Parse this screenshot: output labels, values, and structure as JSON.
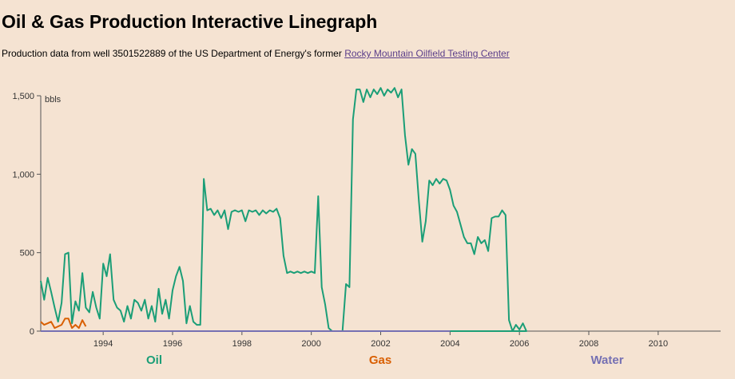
{
  "header": {
    "title": "Oil & Gas Production Interactive Linegraph",
    "subtitle_prefix": "Production data from well 3501522889 of the US Department of Energy's former ",
    "link_text": "Rocky Mountain Oilfield Testing Center"
  },
  "colors": {
    "oil": "#1b9e77",
    "gas": "#d95f02",
    "water": "#7570b3",
    "axis": "#555555"
  },
  "chart_data": {
    "type": "line",
    "ylabel": "bbls",
    "ylim": [
      0,
      1500
    ],
    "xlim": [
      1992.2,
      2011.8
    ],
    "y_ticks": [
      {
        "value": 0,
        "label": "0"
      },
      {
        "value": 500,
        "label": "500"
      },
      {
        "value": 1000,
        "label": "1,000"
      },
      {
        "value": 1500,
        "label": "1,500"
      }
    ],
    "x_ticks": [
      {
        "value": 1994,
        "label": "1994"
      },
      {
        "value": 1996,
        "label": "1996"
      },
      {
        "value": 1998,
        "label": "1998"
      },
      {
        "value": 2000,
        "label": "2000"
      },
      {
        "value": 2002,
        "label": "2002"
      },
      {
        "value": 2004,
        "label": "2004"
      },
      {
        "value": 2006,
        "label": "2006"
      },
      {
        "value": 2008,
        "label": "2008"
      },
      {
        "value": 2010,
        "label": "2010"
      }
    ],
    "legend": [
      "Oil",
      "Gas",
      "Water"
    ],
    "series": [
      {
        "name": "Oil",
        "points": [
          [
            1992.2,
            320
          ],
          [
            1992.3,
            200
          ],
          [
            1992.4,
            340
          ],
          [
            1992.5,
            250
          ],
          [
            1992.6,
            150
          ],
          [
            1992.7,
            60
          ],
          [
            1992.8,
            180
          ],
          [
            1992.9,
            490
          ],
          [
            1993.0,
            500
          ],
          [
            1993.1,
            50
          ],
          [
            1993.2,
            190
          ],
          [
            1993.3,
            130
          ],
          [
            1993.4,
            370
          ],
          [
            1993.5,
            150
          ],
          [
            1993.6,
            120
          ],
          [
            1993.7,
            250
          ],
          [
            1993.8,
            150
          ],
          [
            1993.9,
            80
          ],
          [
            1994.0,
            430
          ],
          [
            1994.1,
            350
          ],
          [
            1994.2,
            490
          ],
          [
            1994.3,
            200
          ],
          [
            1994.4,
            150
          ],
          [
            1994.5,
            130
          ],
          [
            1994.6,
            60
          ],
          [
            1994.7,
            160
          ],
          [
            1994.8,
            80
          ],
          [
            1994.9,
            200
          ],
          [
            1995.0,
            180
          ],
          [
            1995.1,
            130
          ],
          [
            1995.2,
            200
          ],
          [
            1995.3,
            80
          ],
          [
            1995.4,
            160
          ],
          [
            1995.5,
            60
          ],
          [
            1995.6,
            270
          ],
          [
            1995.7,
            110
          ],
          [
            1995.8,
            200
          ],
          [
            1995.9,
            80
          ],
          [
            1996.0,
            260
          ],
          [
            1996.1,
            350
          ],
          [
            1996.2,
            410
          ],
          [
            1996.3,
            320
          ],
          [
            1996.4,
            50
          ],
          [
            1996.5,
            160
          ],
          [
            1996.6,
            60
          ],
          [
            1996.7,
            40
          ],
          [
            1996.8,
            40
          ],
          [
            1996.9,
            970
          ],
          [
            1997.0,
            770
          ],
          [
            1997.1,
            780
          ],
          [
            1997.2,
            740
          ],
          [
            1997.3,
            770
          ],
          [
            1997.4,
            720
          ],
          [
            1997.5,
            770
          ],
          [
            1997.6,
            650
          ],
          [
            1997.7,
            760
          ],
          [
            1997.8,
            770
          ],
          [
            1997.9,
            760
          ],
          [
            1998.0,
            770
          ],
          [
            1998.1,
            700
          ],
          [
            1998.2,
            770
          ],
          [
            1998.3,
            760
          ],
          [
            1998.4,
            770
          ],
          [
            1998.5,
            740
          ],
          [
            1998.6,
            770
          ],
          [
            1998.7,
            750
          ],
          [
            1998.8,
            770
          ],
          [
            1998.9,
            760
          ],
          [
            1999.0,
            780
          ],
          [
            1999.1,
            720
          ],
          [
            1999.2,
            480
          ],
          [
            1999.3,
            370
          ],
          [
            1999.4,
            380
          ],
          [
            1999.5,
            370
          ],
          [
            1999.6,
            380
          ],
          [
            1999.7,
            370
          ],
          [
            1999.8,
            380
          ],
          [
            1999.9,
            370
          ],
          [
            2000.0,
            380
          ],
          [
            2000.1,
            370
          ],
          [
            2000.2,
            860
          ],
          [
            2000.3,
            280
          ],
          [
            2000.4,
            170
          ],
          [
            2000.5,
            20
          ],
          [
            2000.6,
            0
          ],
          [
            2000.9,
            0
          ],
          [
            2001.0,
            300
          ],
          [
            2001.1,
            280
          ],
          [
            2001.2,
            1350
          ],
          [
            2001.3,
            1540
          ],
          [
            2001.4,
            1540
          ],
          [
            2001.5,
            1460
          ],
          [
            2001.6,
            1540
          ],
          [
            2001.7,
            1490
          ],
          [
            2001.8,
            1540
          ],
          [
            2001.9,
            1510
          ],
          [
            2002.0,
            1550
          ],
          [
            2002.1,
            1500
          ],
          [
            2002.2,
            1540
          ],
          [
            2002.3,
            1520
          ],
          [
            2002.4,
            1550
          ],
          [
            2002.5,
            1490
          ],
          [
            2002.6,
            1540
          ],
          [
            2002.7,
            1250
          ],
          [
            2002.8,
            1060
          ],
          [
            2002.9,
            1160
          ],
          [
            2003.0,
            1130
          ],
          [
            2003.1,
            830
          ],
          [
            2003.2,
            570
          ],
          [
            2003.3,
            700
          ],
          [
            2003.4,
            960
          ],
          [
            2003.5,
            930
          ],
          [
            2003.6,
            970
          ],
          [
            2003.7,
            940
          ],
          [
            2003.8,
            970
          ],
          [
            2003.9,
            960
          ],
          [
            2004.0,
            900
          ],
          [
            2004.1,
            800
          ],
          [
            2004.2,
            760
          ],
          [
            2004.3,
            680
          ],
          [
            2004.4,
            600
          ],
          [
            2004.5,
            560
          ],
          [
            2004.6,
            560
          ],
          [
            2004.7,
            490
          ],
          [
            2004.8,
            600
          ],
          [
            2004.9,
            560
          ],
          [
            2005.0,
            580
          ],
          [
            2005.1,
            510
          ],
          [
            2005.2,
            720
          ],
          [
            2005.3,
            730
          ],
          [
            2005.4,
            730
          ],
          [
            2005.5,
            770
          ],
          [
            2005.6,
            740
          ],
          [
            2005.7,
            70
          ],
          [
            2005.8,
            0
          ],
          [
            2005.9,
            40
          ],
          [
            2006.0,
            10
          ],
          [
            2006.1,
            50
          ],
          [
            2006.2,
            0
          ],
          [
            2004.0,
            0
          ]
        ]
      },
      {
        "name": "Gas",
        "points": [
          [
            1992.2,
            60
          ],
          [
            1992.3,
            40
          ],
          [
            1992.4,
            50
          ],
          [
            1992.5,
            60
          ],
          [
            1992.6,
            20
          ],
          [
            1992.7,
            30
          ],
          [
            1992.8,
            40
          ],
          [
            1992.9,
            80
          ],
          [
            1993.0,
            80
          ],
          [
            1993.1,
            20
          ],
          [
            1993.2,
            40
          ],
          [
            1993.3,
            20
          ],
          [
            1993.4,
            70
          ],
          [
            1993.5,
            30
          ]
        ]
      },
      {
        "name": "Water",
        "points": [
          [
            1992.2,
            0
          ],
          [
            2004.0,
            0
          ]
        ]
      }
    ]
  }
}
